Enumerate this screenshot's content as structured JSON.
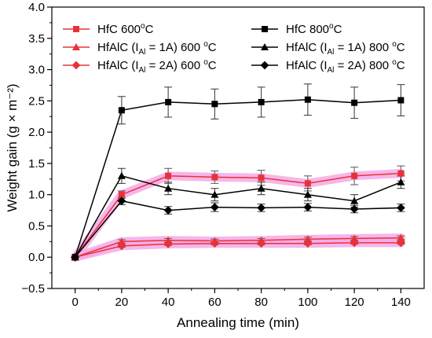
{
  "chart_data": {
    "type": "line",
    "title": "",
    "xlabel": "Annealing time (min)",
    "ylabel": "Weight gain (g × m⁻²)",
    "x": [
      0,
      20,
      40,
      60,
      80,
      100,
      120,
      140
    ],
    "xlim": [
      -10,
      150
    ],
    "ylim": [
      -0.5,
      4.0
    ],
    "xticks": [
      "0",
      "20",
      "40",
      "60",
      "80",
      "100",
      "120",
      "140"
    ],
    "yticks": [
      "−0.5",
      "0.0",
      "0.5",
      "1.0",
      "1.5",
      "2.0",
      "2.5",
      "3.0",
      "3.5",
      "4.0"
    ],
    "grid": false,
    "legend_position": "top",
    "series": [
      {
        "name": "HfC 600°C",
        "legend": {
          "main": "HfC 600",
          "sub": "",
          "mid": "",
          "sup": "o",
          "tail": "C"
        },
        "marker": "square",
        "color": "#e8323a",
        "highlight": "#f4a9e6",
        "values": [
          0.0,
          1.0,
          1.3,
          1.28,
          1.27,
          1.18,
          1.3,
          1.34
        ],
        "errors": [
          0,
          0.06,
          0.12,
          0.1,
          0.12,
          0.12,
          0.14,
          0.12
        ]
      },
      {
        "name": "HfC 800°C",
        "legend": {
          "main": "HfC 800",
          "sub": "",
          "mid": "",
          "sup": "o",
          "tail": "C"
        },
        "marker": "square",
        "color": "#000000",
        "highlight": "",
        "values": [
          0.0,
          2.35,
          2.48,
          2.45,
          2.48,
          2.52,
          2.47,
          2.51
        ],
        "errors": [
          0,
          0.22,
          0.24,
          0.24,
          0.24,
          0.25,
          0.25,
          0.25
        ]
      },
      {
        "name": "HfAlC (IAl = 1A) 600 °C",
        "legend": {
          "main": "HfAlC (I",
          "sub": "Al",
          "mid": " = 1A) 600 ",
          "sup": "o",
          "tail": "C"
        },
        "marker": "triangle",
        "color": "#e8323a",
        "highlight": "#f4a9e6",
        "values": [
          0.0,
          0.25,
          0.27,
          0.26,
          0.27,
          0.29,
          0.3,
          0.31
        ],
        "errors": [
          0,
          0.03,
          0.03,
          0.03,
          0.03,
          0.03,
          0.03,
          0.03
        ]
      },
      {
        "name": "HfAlC (IAl = 1A) 800 °C",
        "legend": {
          "main": "HfAlC (I",
          "sub": "Al",
          "mid": " = 1A) 800 ",
          "sup": "o",
          "tail": "C"
        },
        "marker": "triangle",
        "color": "#000000",
        "highlight": "",
        "values": [
          0.0,
          1.3,
          1.1,
          1.0,
          1.1,
          1.0,
          0.9,
          1.2
        ],
        "errors": [
          0,
          0.12,
          0.1,
          0.1,
          0.1,
          0.1,
          0.1,
          0.1
        ]
      },
      {
        "name": "HfAlC (IAl = 2A) 600 °C",
        "legend": {
          "main": "HfAlC (I",
          "sub": "Al",
          "mid": " = 2A) 600 ",
          "sup": "o",
          "tail": "C"
        },
        "marker": "diamond",
        "color": "#e8323a",
        "highlight": "#f4a9e6",
        "values": [
          0.0,
          0.18,
          0.21,
          0.22,
          0.22,
          0.22,
          0.23,
          0.23
        ],
        "errors": [
          0,
          0.02,
          0.02,
          0.02,
          0.02,
          0.02,
          0.02,
          0.02
        ]
      },
      {
        "name": "HfAlC (IAl = 2A) 800 °C",
        "legend": {
          "main": "HfAlC (I",
          "sub": "Al",
          "mid": " = 2A) 800 ",
          "sup": "o",
          "tail": "C"
        },
        "marker": "diamond",
        "color": "#000000",
        "highlight": "",
        "values": [
          0.0,
          0.9,
          0.75,
          0.8,
          0.79,
          0.8,
          0.77,
          0.79
        ],
        "errors": [
          0,
          0.06,
          0.06,
          0.07,
          0.06,
          0.06,
          0.06,
          0.06
        ]
      }
    ]
  }
}
